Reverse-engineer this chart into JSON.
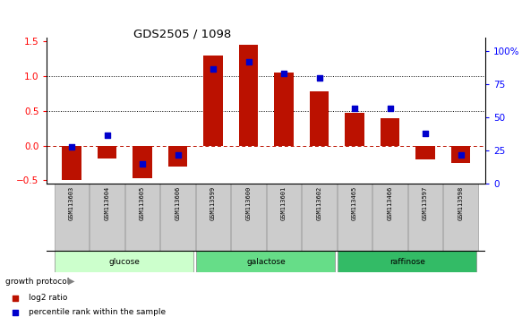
{
  "title": "GDS2505 / 1098",
  "samples": [
    "GSM113603",
    "GSM113604",
    "GSM113605",
    "GSM113606",
    "GSM113599",
    "GSM113600",
    "GSM113601",
    "GSM113602",
    "GSM113465",
    "GSM113466",
    "GSM113597",
    "GSM113598"
  ],
  "log2_ratio": [
    -0.5,
    -0.18,
    -0.47,
    -0.3,
    1.3,
    1.45,
    1.05,
    0.78,
    0.47,
    0.4,
    -0.2,
    -0.25
  ],
  "percentile_rank": [
    28,
    37,
    15,
    22,
    87,
    92,
    83,
    80,
    57,
    57,
    38,
    22
  ],
  "groups": [
    {
      "label": "glucose",
      "start": 0,
      "end": 3,
      "color": "#ccffcc"
    },
    {
      "label": "galactose",
      "start": 4,
      "end": 7,
      "color": "#66dd88"
    },
    {
      "label": "raffinose",
      "start": 8,
      "end": 11,
      "color": "#33bb66"
    }
  ],
  "bar_color": "#bb1100",
  "scatter_color": "#0000cc",
  "ylim_left": [
    -0.55,
    1.55
  ],
  "ylim_right": [
    0,
    110
  ],
  "yticks_left": [
    -0.5,
    0.0,
    0.5,
    1.0,
    1.5
  ],
  "yticks_right": [
    0,
    25,
    50,
    75,
    100
  ],
  "background_color": "#ffffff",
  "legend_log2": "log2 ratio",
  "legend_pct": "percentile rank within the sample",
  "bar_width": 0.55
}
